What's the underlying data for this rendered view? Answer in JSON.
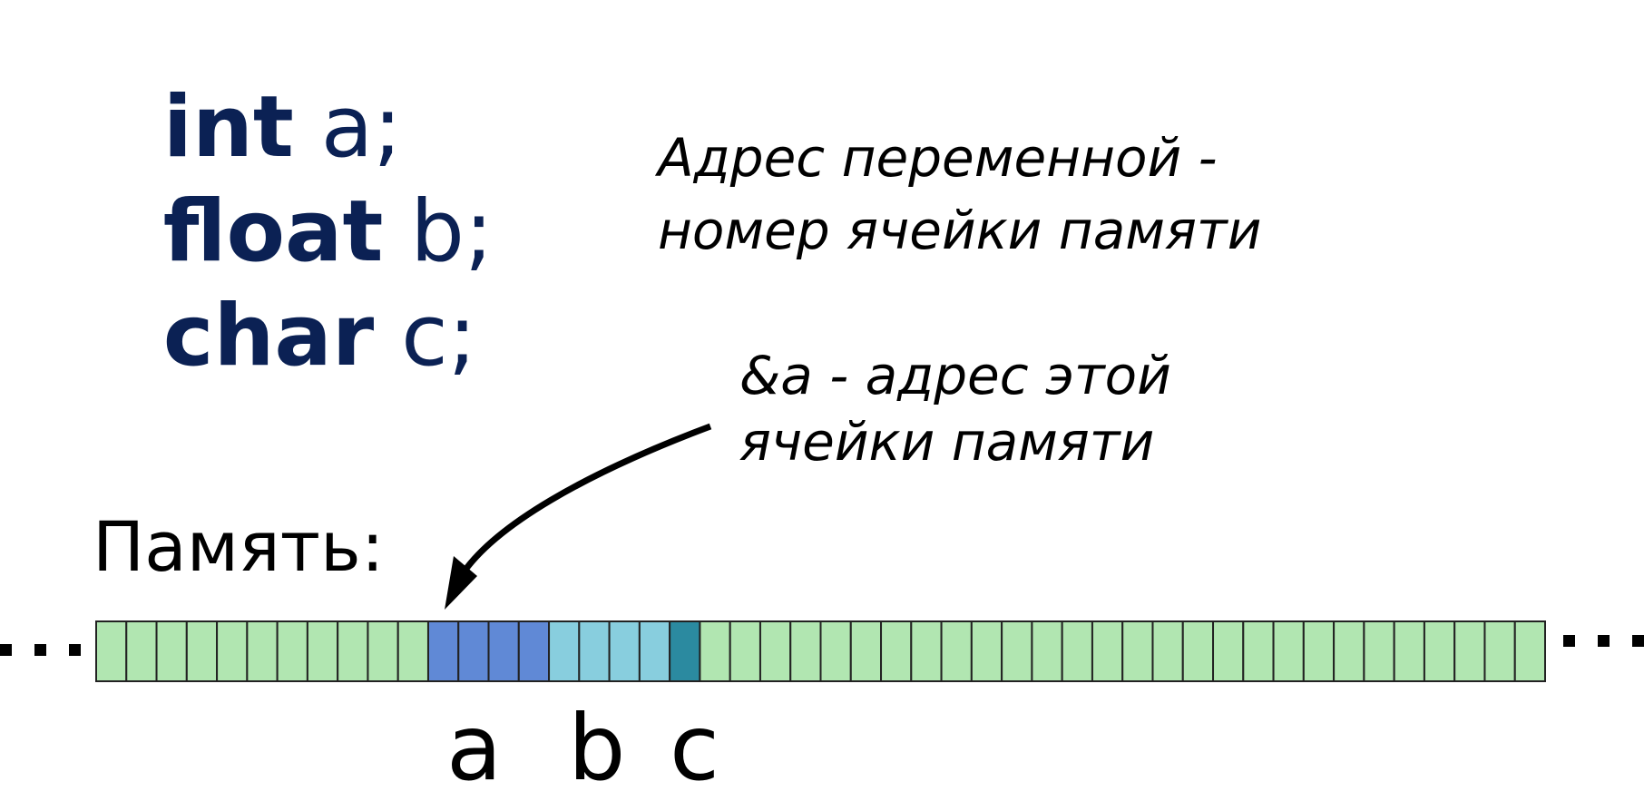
{
  "code": [
    {
      "keyword": "int",
      "rest": " a;"
    },
    {
      "keyword": "float",
      "rest": " b;"
    },
    {
      "keyword": "char",
      "rest": " c;"
    }
  ],
  "address_note": {
    "line1": "Адрес переменной -",
    "line2": "номер ячейки памяти"
  },
  "ref_note": {
    "line1": "&a - адрес этой",
    "line2": "ячейки памяти"
  },
  "memory_label": "Память:",
  "ellipsis_left": "...",
  "ellipsis_right": "...",
  "memory": {
    "cells_total": 48,
    "segments": [
      {
        "kind": "free",
        "count": 11,
        "color": "#b1e6b1"
      },
      {
        "kind": "a",
        "count": 4,
        "color": "#6089d6"
      },
      {
        "kind": "b",
        "count": 4,
        "color": "#88cede"
      },
      {
        "kind": "c",
        "count": 1,
        "color": "#2b8aa0"
      },
      {
        "kind": "free",
        "count": 28,
        "color": "#b1e6b1"
      }
    ]
  },
  "var_labels": {
    "a": "a",
    "b": "b",
    "c": "c"
  },
  "colors": {
    "code": "#0b2154",
    "text": "#000000",
    "cell_border": "#222222"
  }
}
